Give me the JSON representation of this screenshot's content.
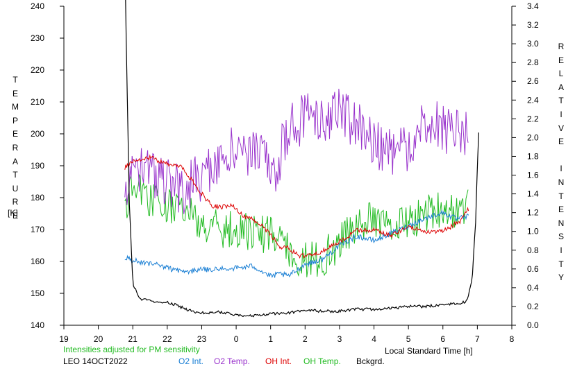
{
  "labels": {
    "left_axis_letters": [
      "T",
      "E",
      "M",
      "P",
      "E",
      "R",
      "A",
      "T",
      "U",
      "R",
      "E"
    ],
    "left_axis_unit": "[K]",
    "right_axis_letters": [
      "R",
      "E",
      "L",
      "A",
      "T",
      "I",
      "V",
      "E",
      "",
      "I",
      "N",
      "T",
      "E",
      "N",
      "S",
      "I",
      "T",
      "Y"
    ],
    "xlabel": "Local Standard Time [h]",
    "note": "Intensities adjusted for PM sensitivity",
    "station": "LEO 14OCT2022",
    "legend": [
      "O2 Int.",
      "O2 Temp.",
      "OH Int.",
      "OH Temp.",
      "Bckgrd."
    ]
  },
  "colors": {
    "o2_int": "#1a7fd4",
    "o2_temp": "#9933cc",
    "oh_int": "#dd0000",
    "oh_temp": "#22bb22",
    "bckgrd": "#000000",
    "note": "#22bb22"
  },
  "chart_data": {
    "type": "line",
    "x_range": [
      19,
      32
    ],
    "x_tick_labels": [
      "19",
      "20",
      "21",
      "22",
      "23",
      "0",
      "1",
      "2",
      "3",
      "4",
      "5",
      "6",
      "7",
      "8"
    ],
    "y_left_range": [
      140,
      240
    ],
    "y_left_ticks": [
      140,
      150,
      160,
      170,
      180,
      190,
      200,
      210,
      220,
      230,
      240
    ],
    "y_right_range": [
      0.0,
      3.4
    ],
    "y_right_ticks": [
      "0.0",
      "0.2",
      "0.4",
      "0.6",
      "0.8",
      "1.0",
      "1.2",
      "1.4",
      "1.6",
      "1.8",
      "2.0",
      "2.2",
      "2.4",
      "2.6",
      "2.8",
      "3.0",
      "3.2",
      "3.4"
    ],
    "series": [
      {
        "name": "O2 Temp.",
        "axis": "left",
        "color": "#9933cc",
        "noise": 8,
        "seed": 11,
        "step": 0.03,
        "x": [
          20.77,
          21.2,
          21.8,
          22.4,
          23.0,
          23.5,
          24.0,
          24.5,
          25.0,
          25.2,
          25.3,
          25.5,
          26.0,
          26.5,
          27.0,
          27.5,
          28.0,
          28.3,
          28.6,
          29.0,
          29.4,
          29.7,
          30.0,
          30.2,
          30.4,
          30.55,
          30.75
        ],
        "y": [
          185,
          188,
          186,
          182,
          187,
          192,
          196,
          194,
          190,
          186,
          196,
          201,
          205,
          204,
          207,
          203,
          198,
          194,
          194,
          196,
          204,
          203,
          202,
          201,
          200,
          198,
          204
        ]
      },
      {
        "name": "OH Temp.",
        "axis": "left",
        "color": "#22bb22",
        "noise": 6,
        "seed": 5,
        "step": 0.03,
        "x": [
          20.77,
          21.0,
          21.5,
          22.0,
          22.5,
          23.0,
          23.5,
          24.0,
          24.5,
          25.0,
          25.3,
          25.6,
          26.0,
          26.5,
          27.0,
          27.5,
          28.0,
          28.5,
          29.0,
          29.5,
          30.0,
          30.3,
          30.6,
          30.75
        ],
        "y": [
          178,
          182,
          180,
          178,
          176,
          172,
          170,
          170,
          169,
          168,
          166,
          163,
          160,
          161,
          166,
          171,
          173,
          172,
          172,
          175,
          177,
          176,
          177,
          178
        ]
      },
      {
        "name": "OH Int.",
        "axis": "right",
        "color": "#dd0000",
        "noise": 0.025,
        "seed": 3,
        "step": 0.025,
        "x": [
          20.77,
          21.0,
          21.5,
          22.0,
          22.4,
          22.7,
          23.0,
          23.3,
          23.6,
          23.9,
          24.2,
          24.6,
          25.0,
          25.3,
          25.5,
          25.8,
          26.1,
          26.5,
          27.0,
          27.5,
          28.0,
          28.5,
          29.0,
          29.5,
          30.0,
          30.5,
          30.75
        ],
        "y": [
          1.68,
          1.75,
          1.79,
          1.72,
          1.69,
          1.55,
          1.4,
          1.27,
          1.26,
          1.29,
          1.16,
          1.11,
          0.97,
          0.82,
          0.83,
          0.74,
          0.74,
          0.79,
          0.89,
          1.01,
          1.02,
          0.95,
          1.06,
          0.99,
          1.0,
          1.11,
          1.24
        ]
      },
      {
        "name": "O2 Int.",
        "axis": "right",
        "color": "#1a7fd4",
        "noise": 0.03,
        "seed": 7,
        "step": 0.025,
        "x": [
          20.77,
          21.0,
          21.5,
          22.0,
          22.5,
          23.0,
          23.5,
          24.0,
          24.5,
          25.0,
          25.3,
          25.5,
          26.0,
          26.5,
          27.0,
          27.5,
          28.0,
          28.5,
          29.0,
          29.5,
          29.8,
          30.0,
          30.4,
          30.75
        ],
        "y": [
          0.72,
          0.69,
          0.66,
          0.61,
          0.57,
          0.59,
          0.6,
          0.61,
          0.63,
          0.52,
          0.55,
          0.52,
          0.65,
          0.7,
          0.85,
          0.95,
          0.9,
          0.98,
          1.06,
          1.14,
          1.18,
          1.2,
          1.13,
          1.16
        ]
      },
      {
        "name": "Bckgrd.",
        "axis": "right",
        "color": "#000000",
        "noise": 0.015,
        "seed": 2,
        "step": 0.03,
        "x": [
          20.75,
          20.8,
          20.9,
          21.0,
          21.2,
          21.5,
          22.0,
          22.3,
          22.6,
          23.0,
          23.5,
          24.0,
          24.5,
          25.0,
          25.5,
          26.0,
          26.5,
          27.0,
          27.5,
          28.0,
          28.5,
          29.0,
          29.5,
          30.0,
          30.5,
          30.7,
          30.85,
          30.95,
          31.0,
          31.05
        ],
        "y": [
          4.5,
          3.2,
          1.3,
          0.45,
          0.28,
          0.26,
          0.24,
          0.21,
          0.16,
          0.13,
          0.14,
          0.11,
          0.1,
          0.12,
          0.13,
          0.16,
          0.15,
          0.15,
          0.17,
          0.17,
          0.18,
          0.2,
          0.2,
          0.22,
          0.23,
          0.26,
          0.5,
          1.1,
          1.7,
          2.15
        ]
      }
    ]
  }
}
